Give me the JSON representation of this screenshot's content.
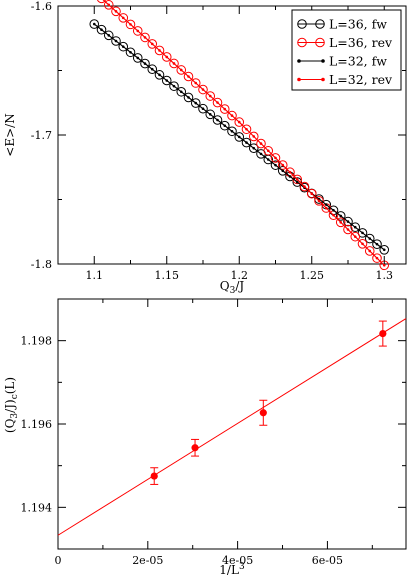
{
  "chart_data": [
    {
      "type": "line",
      "title": "",
      "xlabel": "Q3/J",
      "xlabel_main": "Q",
      "xlabel_sub": "3",
      "xlabel_tail": "/J",
      "ylabel": "<E>/N",
      "xlim": [
        1.075,
        1.315
      ],
      "ylim": [
        -1.8,
        -1.6
      ],
      "x_ticks": [
        1.1,
        1.15,
        1.2,
        1.25,
        1.3
      ],
      "x_tick_labels": [
        "1.1",
        "1.15",
        "1.2",
        "1.25",
        "1.3"
      ],
      "y_ticks": [
        -1.8,
        -1.7,
        -1.6
      ],
      "y_tick_labels": [
        "-1.8",
        "-1.7",
        "-1.6"
      ],
      "grid": false,
      "legend_position": "top-right",
      "x_start": 1.1,
      "x_step": 0.005,
      "series": [
        {
          "name": "L=36, fw",
          "color": "#000000",
          "marker": "open-circle",
          "line": [
            [
              1.1,
              -1.614
            ],
            [
              1.3,
              -1.789
            ]
          ]
        },
        {
          "name": "L=36, rev",
          "color": "#ff0000",
          "marker": "open-circle",
          "line": [
            [
              1.1,
              -1.589
            ],
            [
              1.2,
              -1.69
            ],
            [
              1.3,
              -1.801
            ]
          ]
        },
        {
          "name": "L=32, fw",
          "color": "#000000",
          "marker": "dot",
          "line": [
            [
              1.1,
              -1.614
            ],
            [
              1.3,
              -1.789
            ]
          ]
        },
        {
          "name": "L=32, rev",
          "color": "#ff0000",
          "marker": "dot",
          "line": [
            [
              1.1,
              -1.589
            ],
            [
              1.2,
              -1.69
            ],
            [
              1.3,
              -1.801
            ]
          ]
        }
      ]
    },
    {
      "type": "scatter",
      "title": "",
      "xlabel": "1/L3",
      "xlabel_main": "1/L",
      "xlabel_sup": "3",
      "ylabel": "(Q3/J)c(L)",
      "ylabel_parts": [
        "(Q",
        "3",
        "/J)",
        "c",
        "(L)"
      ],
      "xlim": [
        0,
        7.75e-05
      ],
      "ylim": [
        1.193,
        1.199
      ],
      "x_ticks": [
        0,
        2e-05,
        4e-05,
        6e-05
      ],
      "x_tick_labels": [
        "0",
        "2e-05",
        "4e-05",
        "6e-05"
      ],
      "y_ticks": [
        1.194,
        1.196,
        1.198
      ],
      "y_tick_labels": [
        "1.194",
        "1.196",
        "1.198"
      ],
      "grid": false,
      "color": "#ff0000",
      "points": [
        {
          "x": 2.143e-05,
          "y": 1.19475,
          "err": 0.0002
        },
        {
          "x": 3.052e-05,
          "y": 1.19543,
          "err": 0.0002
        },
        {
          "x": 4.572e-05,
          "y": 1.19627,
          "err": 0.0003
        },
        {
          "x": 7.234e-05,
          "y": 1.19817,
          "err": 0.0003
        }
      ],
      "fit_line": {
        "intercept": 1.19333,
        "slope": 67.1
      }
    }
  ]
}
